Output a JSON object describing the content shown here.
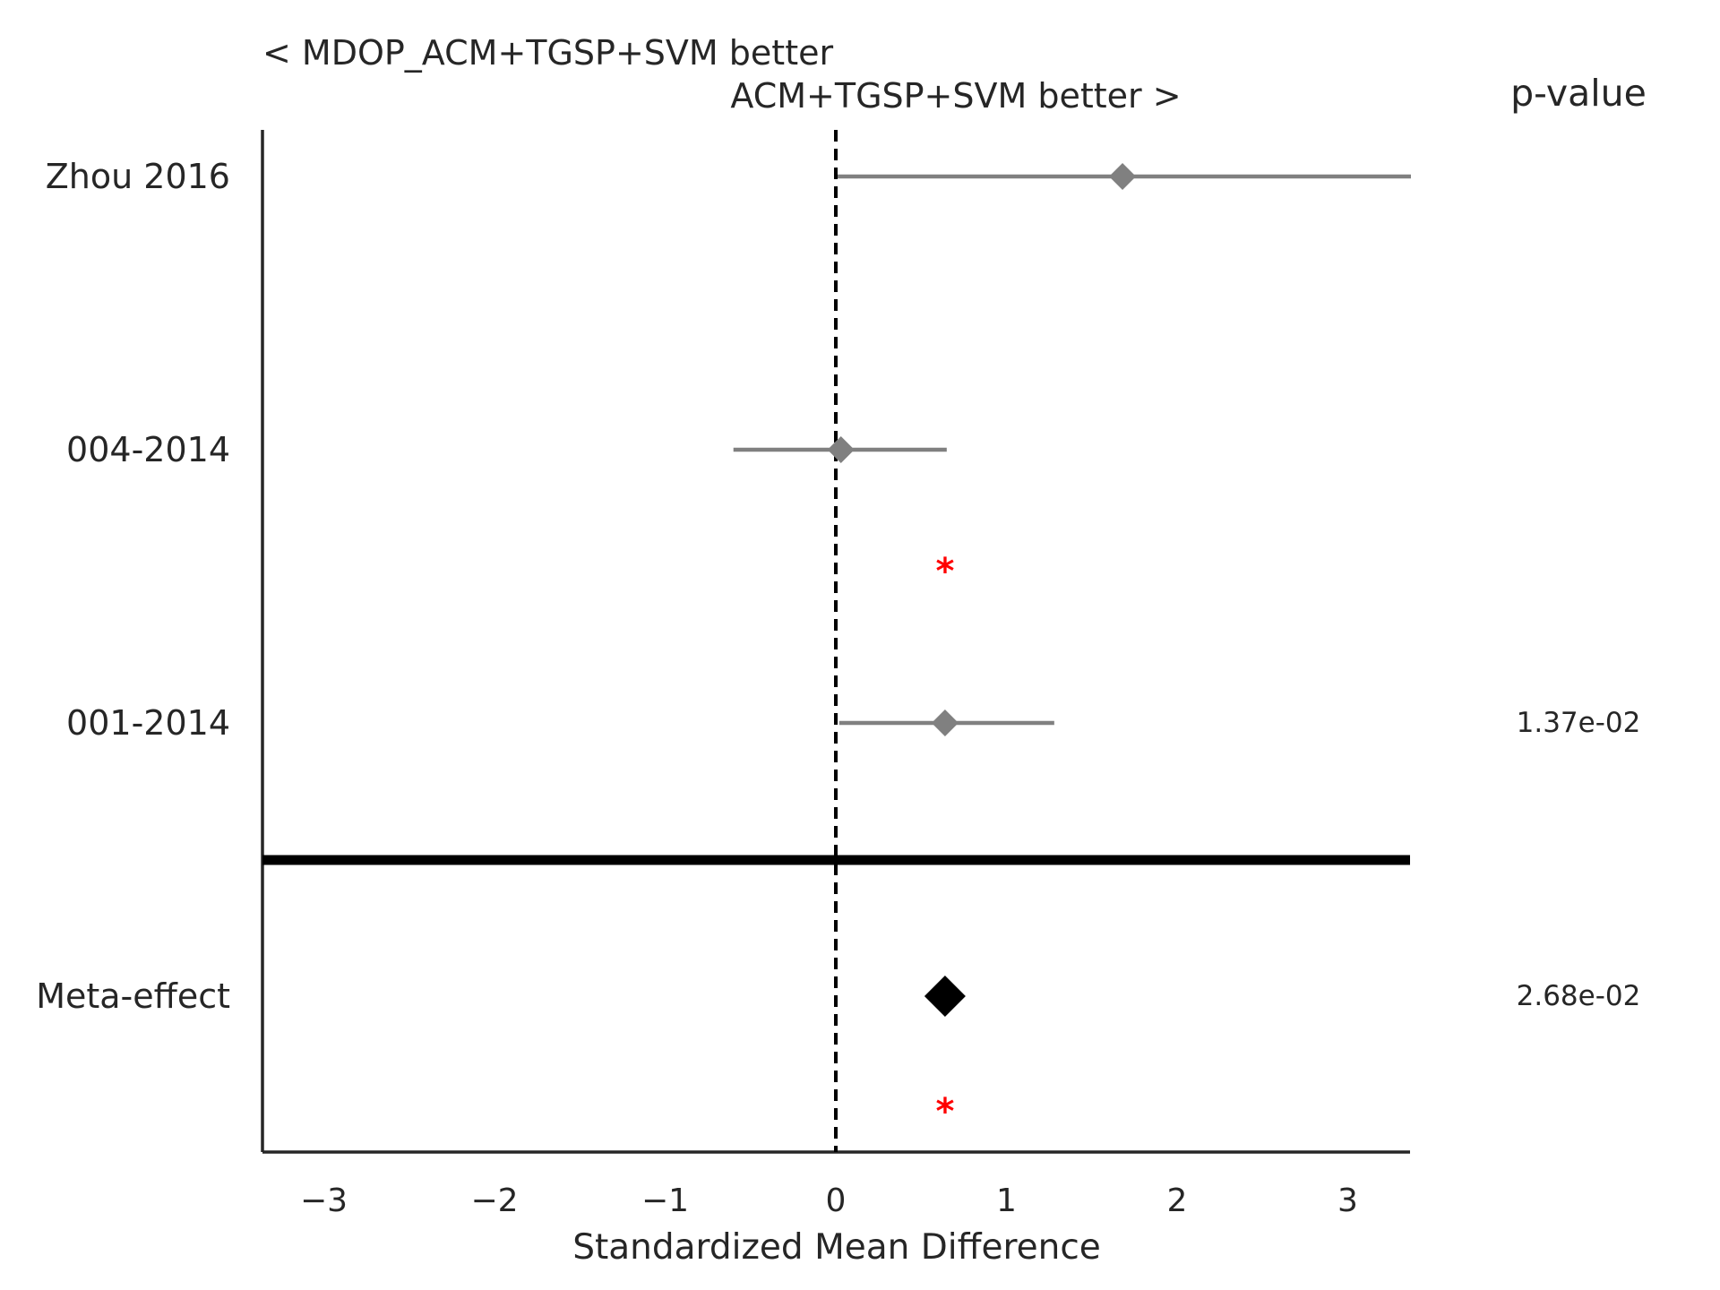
{
  "chart_data": {
    "type": "scatter",
    "subtype": "forest-plot",
    "header_left": "< MDOP_ACM+TGSP+SVM better",
    "header_right": "ACM+TGSP+SVM better >",
    "pvalue_header": "p-value",
    "xlabel": "Standardized Mean Difference",
    "xlim": [
      -3.37,
      3.37
    ],
    "xticks": [
      -3,
      -2,
      -1,
      0,
      1,
      2,
      3
    ],
    "xtick_labels": [
      "−3",
      "−2",
      "−1",
      "0",
      "1",
      "2",
      "3"
    ],
    "reference_line": 0,
    "studies": [
      {
        "label": "Zhou 2016",
        "effect": 1.68,
        "ci": [
          0.0,
          3.37
        ],
        "pvalue": "",
        "significant": false
      },
      {
        "label": "004-2014",
        "effect": 0.03,
        "ci": [
          -0.6,
          0.65
        ],
        "pvalue": "",
        "significant": false
      },
      {
        "label": "001-2014",
        "effect": 0.64,
        "ci": [
          0.02,
          1.28
        ],
        "pvalue": "1.37e-02",
        "significant": true
      }
    ],
    "meta": {
      "label": "Meta-effect",
      "effect": 0.64,
      "pvalue": "2.68e-02",
      "significant": true
    },
    "significance_marker": "*",
    "colors": {
      "study": "#808080",
      "meta": "#000000",
      "significance": "#ff0000",
      "axis": "#262626",
      "separator": "#000000"
    }
  }
}
